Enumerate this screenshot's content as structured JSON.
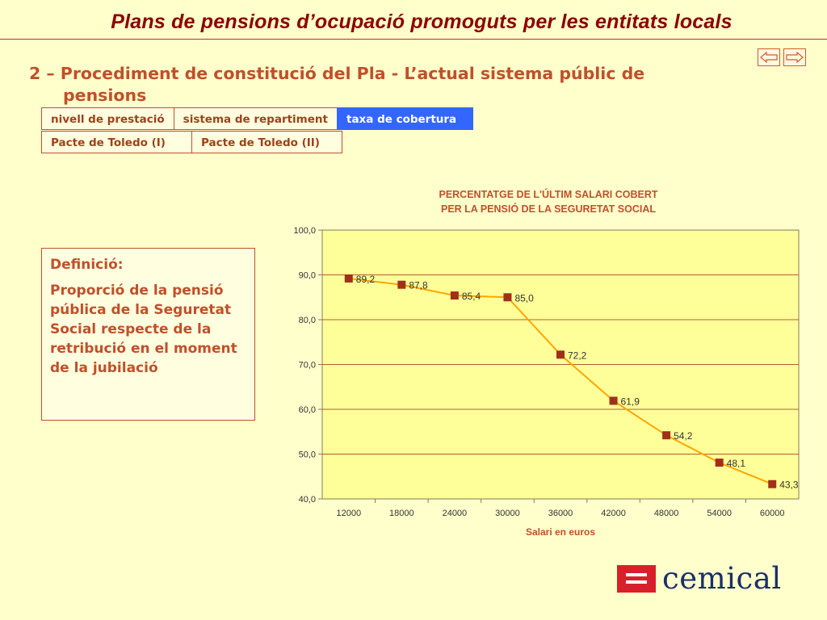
{
  "page": {
    "title": "Plans de pensions d’ocupació promoguts per les entitats locals",
    "section_number": "2 –",
    "section_title_line1": "Procediment de constitució del Pla - L’actual sistema públic de",
    "section_title_line2": "pensions"
  },
  "nav": {
    "prev_icon": "arrow-left-icon",
    "next_icon": "arrow-right-icon"
  },
  "tabs": {
    "row1": [
      "nivell de prestació",
      "sistema de repartiment",
      "taxa de cobertura"
    ],
    "row2": [
      "Pacte de Toledo (I)",
      "Pacte de Toledo (II)"
    ],
    "active": "taxa de cobertura"
  },
  "definition": {
    "label": "Definició:",
    "text": "Proporció de la pensió pública de la Seguretat Social respecte de la retribució en el moment de la jubilació"
  },
  "chart_data": {
    "type": "line",
    "title_line1": "PERCENTATGE DE L'ÚLTIM SALARI COBERT",
    "title_line2": "PER LA PENSIÓ DE LA SEGURETAT SOCIAL",
    "xlabel": "Salari en euros",
    "ylabel": "",
    "categories": [
      "12000",
      "18000",
      "24000",
      "30000",
      "36000",
      "42000",
      "48000",
      "54000",
      "60000"
    ],
    "values": [
      89.2,
      87.8,
      85.4,
      85.0,
      72.2,
      61.9,
      54.2,
      48.1,
      43.3
    ],
    "data_labels": [
      "89,2",
      "87,8",
      "85,4",
      "85,0",
      "72,2",
      "61,9",
      "54,2",
      "48,1",
      "43,3"
    ],
    "y_ticks": [
      "40,0",
      "50,0",
      "60,0",
      "70,0",
      "80,0",
      "90,0",
      "100,0"
    ],
    "ylim": [
      40,
      100
    ],
    "grid": true,
    "colors": {
      "plot_background": "#ffff99",
      "line": "#ffa500",
      "marker": "#a0301a",
      "title": "#c0502a"
    }
  },
  "logo": {
    "text": "cemical",
    "mark_icon": "equals-icon",
    "brand_color": "#d8202a"
  }
}
